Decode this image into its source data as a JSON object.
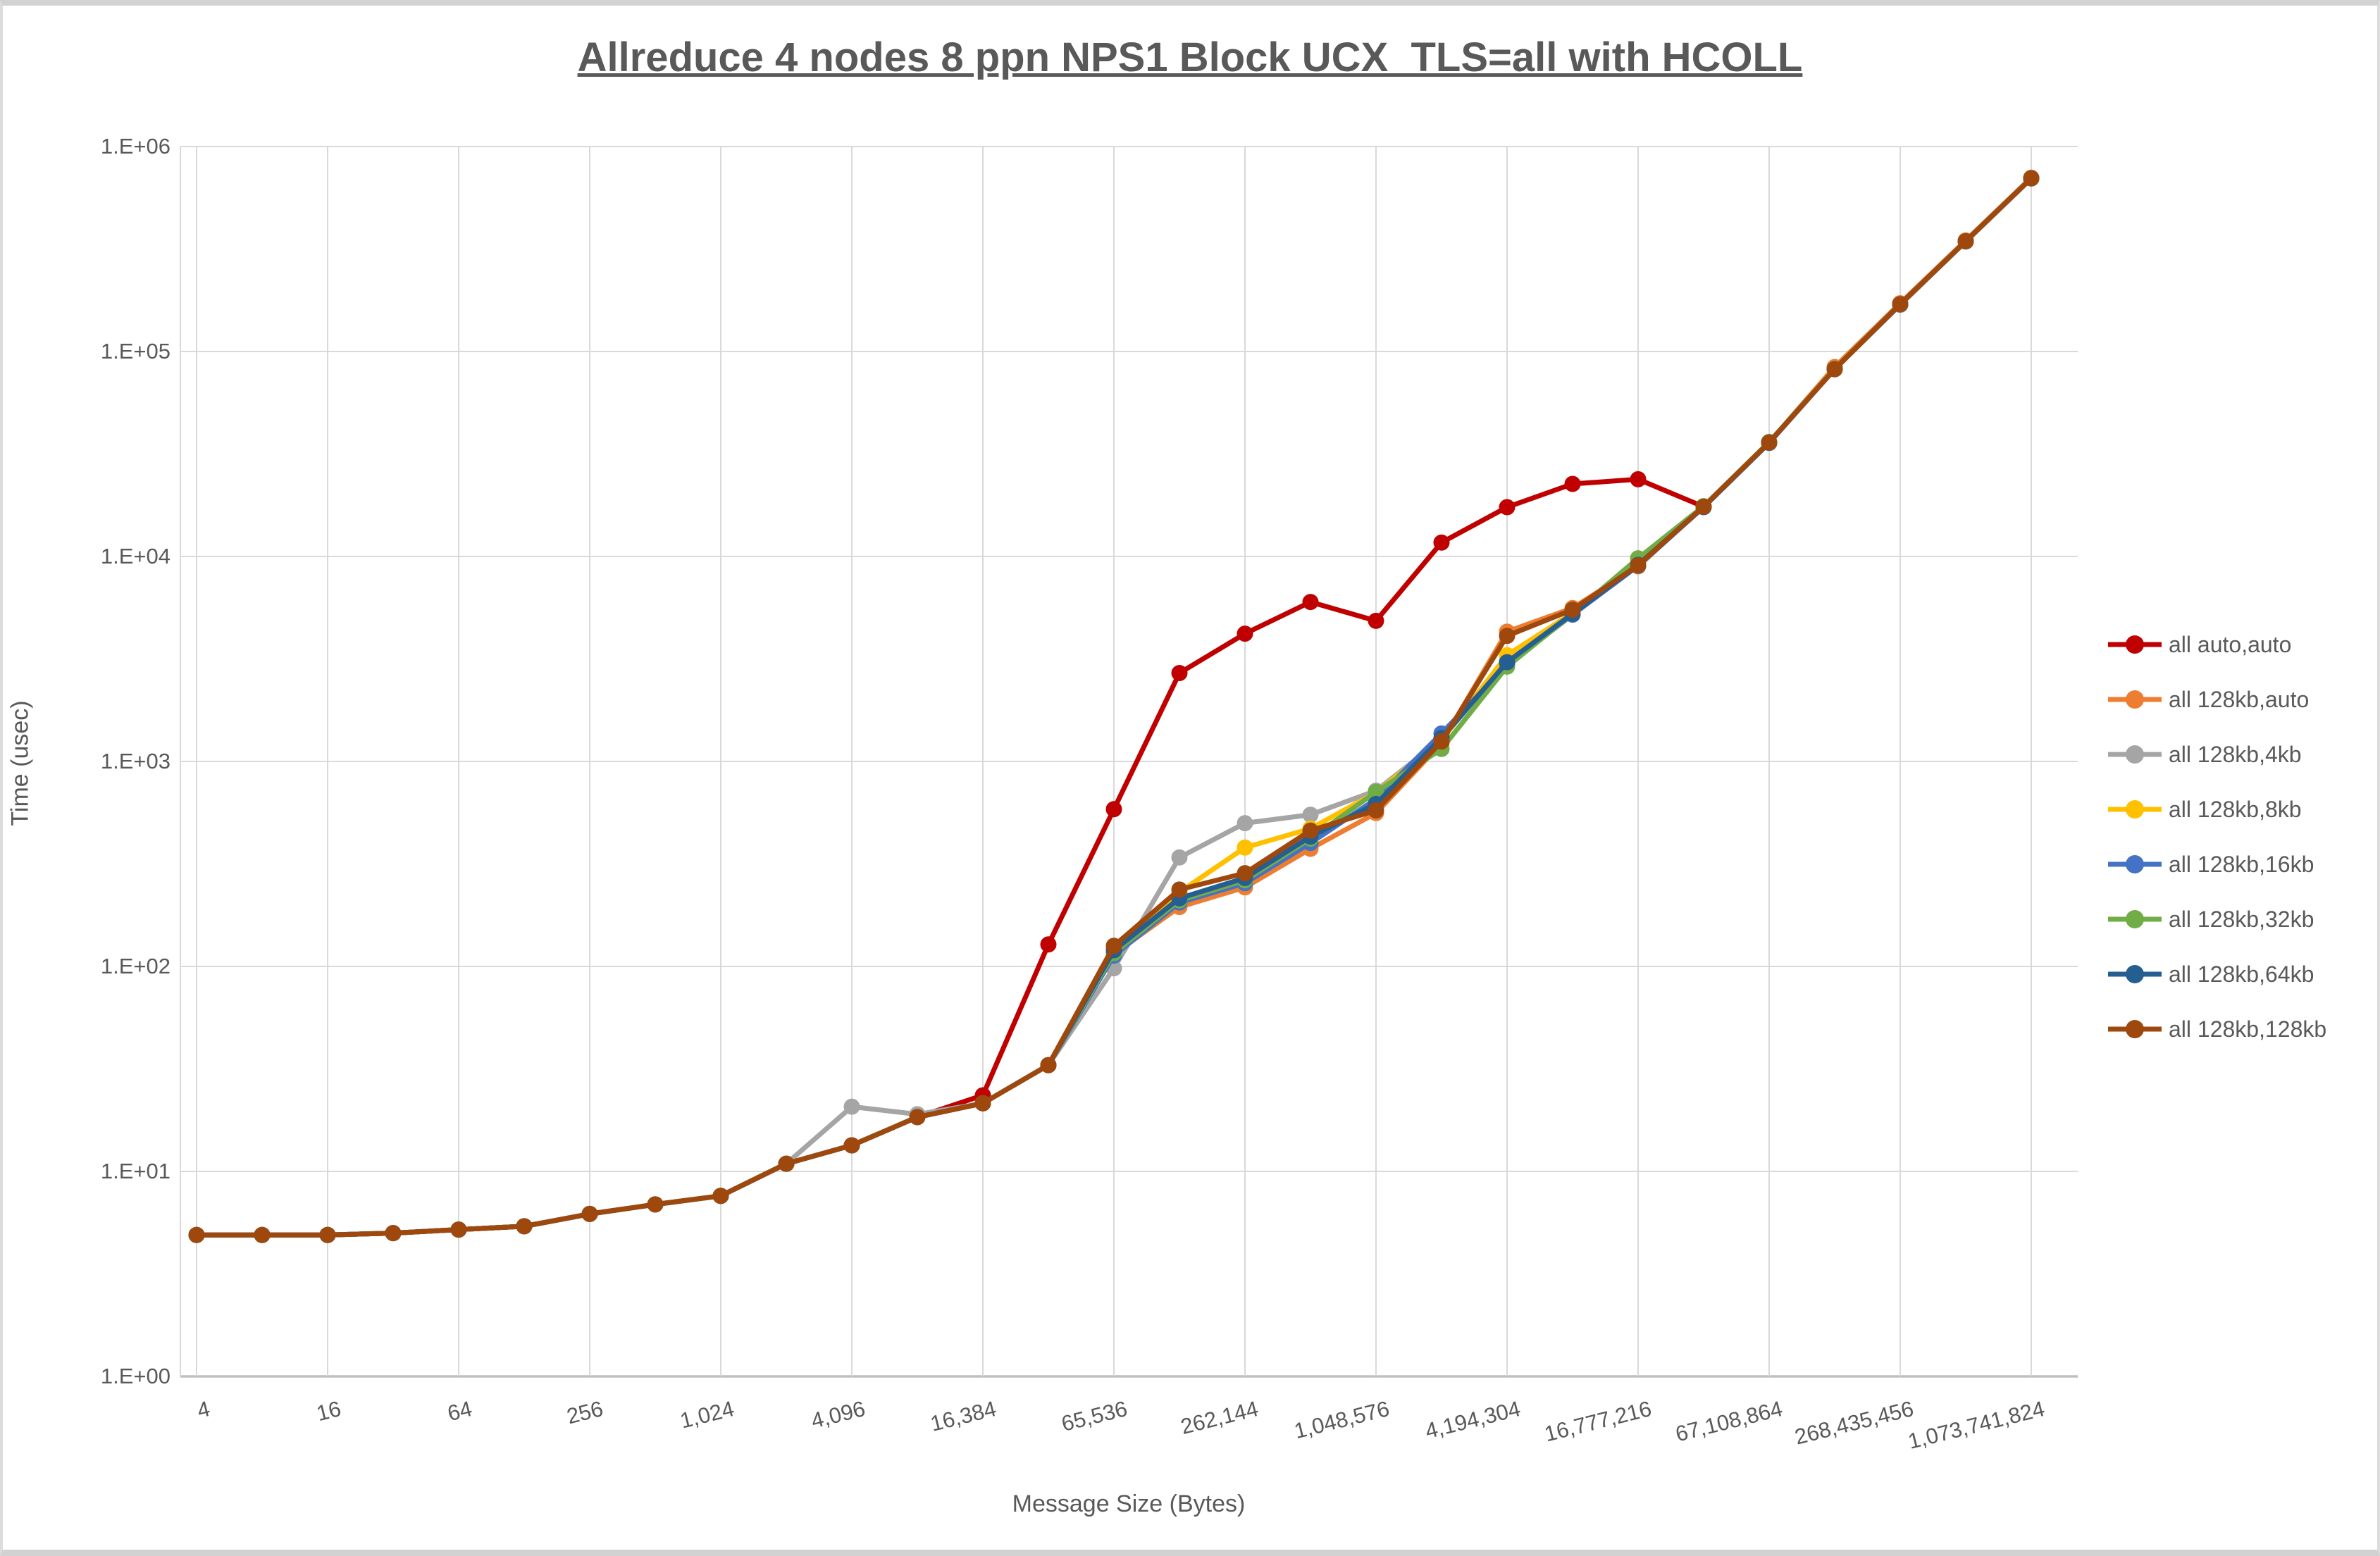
{
  "title": "Allreduce 4 nodes 8 ppn NPS1 Block UCX_TLS=all with HCOLL",
  "palette": {
    "text": "#595959",
    "gridline": "#d9d9d9",
    "axis_line": "#bfbfbf"
  },
  "chart_data": {
    "type": "line",
    "title": "Allreduce 4 nodes 8 ppn NPS1 Block UCX_TLS=all with HCOLL",
    "xlabel": "Message Size (Bytes)",
    "ylabel": "Time (usec)",
    "x_scale": "log2",
    "y_scale": "log10",
    "ylim": [
      1,
      1000000
    ],
    "grid": true,
    "legend_position": "right",
    "y_tick_labels": [
      "1.E+00",
      "1.E+01",
      "1.E+02",
      "1.E+03",
      "1.E+04",
      "1.E+05",
      "1.E+06"
    ],
    "x_tick_labels": [
      "4",
      "16",
      "64",
      "256",
      "1,024",
      "4,096",
      "16,384",
      "65,536",
      "262,144",
      "1,048,576",
      "4,194,304",
      "16,777,216",
      "67,108,864",
      "268,435,456",
      "1,073,741,824"
    ],
    "categories": [
      4,
      8,
      16,
      32,
      64,
      128,
      256,
      512,
      1024,
      2048,
      4096,
      8192,
      16384,
      32768,
      65536,
      131072,
      262144,
      524288,
      1048576,
      2097152,
      4194304,
      8388608,
      16777216,
      33554432,
      67108864,
      134217728,
      268435456,
      536870912,
      1073741824
    ],
    "series": [
      {
        "name": "all auto,auto",
        "color": "#C00000",
        "values": [
          4.9,
          4.9,
          4.9,
          5.0,
          5.2,
          5.4,
          6.2,
          6.9,
          7.6,
          10.9,
          13.4,
          18.4,
          23.5,
          128,
          585,
          2700,
          4200,
          6000,
          4850,
          11700,
          17400,
          22600,
          23800,
          17500,
          36000,
          82000,
          170000,
          345000,
          700000
        ]
      },
      {
        "name": "all 128kb,auto",
        "color": "#ED7D31",
        "values": [
          4.9,
          4.9,
          4.9,
          5.0,
          5.2,
          5.4,
          6.2,
          6.9,
          7.6,
          10.9,
          13.4,
          18.4,
          21.5,
          33,
          115,
          195,
          243,
          375,
          560,
          1230,
          4300,
          5600,
          8950,
          17500,
          36000,
          84000,
          172000,
          348000,
          705000
        ]
      },
      {
        "name": "all 128kb,4kb",
        "color": "#A5A5A5",
        "values": [
          4.9,
          4.9,
          4.9,
          5.0,
          5.2,
          5.4,
          6.2,
          6.9,
          7.6,
          10.9,
          20.7,
          19.0,
          21.5,
          33,
          98,
          340,
          500,
          550,
          720,
          1280,
          3100,
          5250,
          9300,
          17400,
          35800,
          82000,
          169000,
          344000,
          698000
        ]
      },
      {
        "name": "all 128kb,8kb",
        "color": "#FFC000",
        "values": [
          4.9,
          4.9,
          4.9,
          5.0,
          5.2,
          5.4,
          6.2,
          6.9,
          7.6,
          10.9,
          13.4,
          18.4,
          21.5,
          33,
          122,
          230,
          380,
          470,
          705,
          1270,
          3300,
          5300,
          9200,
          17450,
          35900,
          82500,
          170000,
          345000,
          700000
        ]
      },
      {
        "name": "all 128kb,16kb",
        "color": "#4472C4",
        "values": [
          4.9,
          4.9,
          4.9,
          5.0,
          5.2,
          5.4,
          6.2,
          6.9,
          7.6,
          10.9,
          13.4,
          18.4,
          21.5,
          33,
          113,
          205,
          255,
          400,
          655,
          1370,
          2950,
          5200,
          9000,
          17400,
          35800,
          82000,
          169500,
          344500,
          699000
        ]
      },
      {
        "name": "all 128kb,32kb",
        "color": "#70AD47",
        "values": [
          4.9,
          4.9,
          4.9,
          5.0,
          5.2,
          5.4,
          6.2,
          6.9,
          7.6,
          10.9,
          13.4,
          18.4,
          21.5,
          33,
          116,
          210,
          263,
          420,
          710,
          1150,
          2900,
          5250,
          9800,
          17600,
          36200,
          82000,
          170000,
          345000,
          700000
        ]
      },
      {
        "name": "all 128kb,64kb",
        "color": "#255E91",
        "values": [
          4.9,
          4.9,
          4.9,
          5.0,
          5.2,
          5.4,
          6.2,
          6.9,
          7.6,
          10.9,
          13.4,
          18.4,
          21.5,
          33,
          120,
          215,
          270,
          430,
          620,
          1300,
          3050,
          5250,
          9100,
          17450,
          35900,
          82200,
          170000,
          345000,
          700000
        ]
      },
      {
        "name": "all 128kb,128kb",
        "color": "#9E480E",
        "values": [
          4.9,
          4.9,
          4.9,
          5.0,
          5.2,
          5.4,
          6.2,
          6.9,
          7.6,
          10.9,
          13.4,
          18.4,
          21.5,
          33,
          126,
          237,
          285,
          460,
          577,
          1250,
          4100,
          5500,
          9050,
          17500,
          36000,
          82000,
          170000,
          345000,
          700000
        ]
      }
    ]
  }
}
